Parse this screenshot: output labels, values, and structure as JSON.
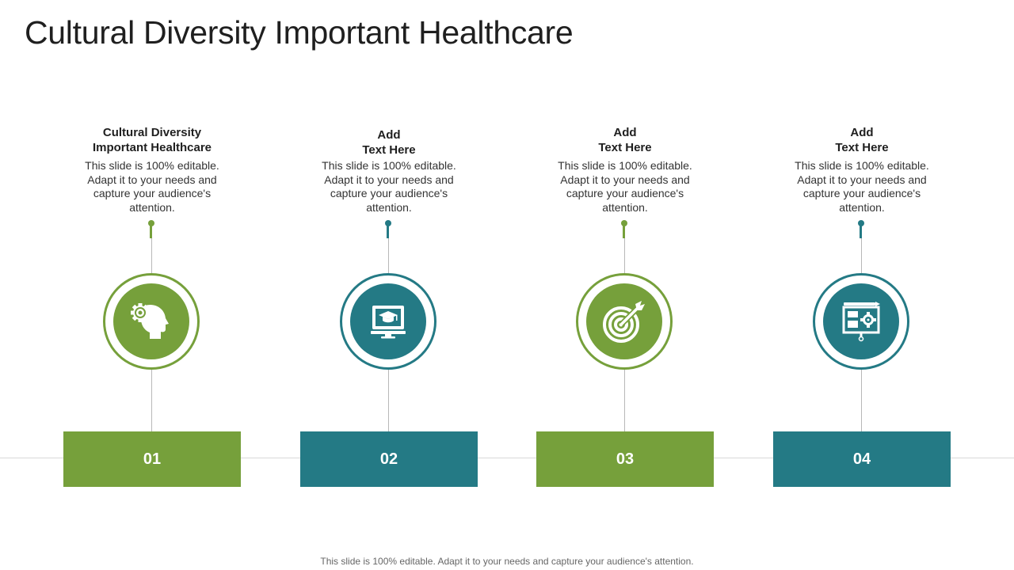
{
  "slide": {
    "title": "Cultural Diversity Important Healthcare",
    "footer": "This slide is 100% editable. Adapt it to your needs and capture your audience's attention."
  },
  "colors": {
    "green": "#76a03b",
    "teal": "#247a85",
    "line": "#b8b8b8"
  },
  "items": [
    {
      "heading_line1": "Cultural Diversity",
      "heading_line2": "Important Healthcare",
      "description": "This slide is 100% editable. Adapt it to your needs and capture your audience's attention.",
      "number": "01",
      "icon": "head-gear-icon",
      "color": "green"
    },
    {
      "heading_line1": "Add",
      "heading_line2": "Text Here",
      "description": "This slide is 100% editable. Adapt it to your needs and capture your audience's attention.",
      "number": "02",
      "icon": "monitor-graduation-cap-icon",
      "color": "teal"
    },
    {
      "heading_line1": "Add",
      "heading_line2": "Text Here",
      "description": "This slide is 100% editable. Adapt it to your needs and capture your audience's attention.",
      "number": "03",
      "icon": "target-arrow-icon",
      "color": "green"
    },
    {
      "heading_line1": "Add",
      "heading_line2": "Text Here",
      "description": "This slide is 100% editable. Adapt it to your needs and capture your audience's attention.",
      "number": "04",
      "icon": "presentation-board-gear-icon",
      "color": "teal"
    }
  ]
}
